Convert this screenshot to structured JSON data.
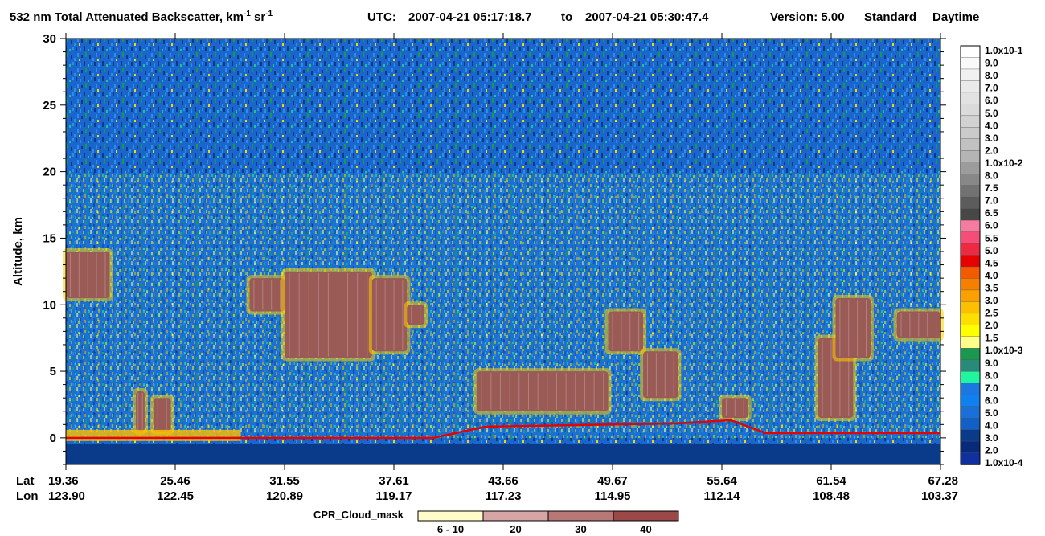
{
  "header": {
    "title_main": "532 nm Total Attenuated Backscatter, km",
    "title_sup1": "-1",
    "title_unit2": " sr",
    "title_sup2": "-1",
    "utc_label": "UTC:",
    "utc_start": "2007-04-21 05:17:18.7",
    "utc_to": "to",
    "utc_end": "2007-04-21 05:30:47.4",
    "version_label": "Version: 5.00",
    "mode": "Standard",
    "daynight": "Daytime"
  },
  "chart_data": {
    "type": "heatmap",
    "ylabel": "Altitude, km",
    "ylim": [
      -2,
      30
    ],
    "y_ticks": [
      0,
      5,
      10,
      15,
      20,
      25,
      30
    ],
    "x_row_labels": [
      "Lat",
      "Lon"
    ],
    "x_ticks": [
      {
        "lat": "19.36",
        "lon": "123.90"
      },
      {
        "lat": "25.46",
        "lon": "122.45"
      },
      {
        "lat": "31.55",
        "lon": "120.89"
      },
      {
        "lat": "37.61",
        "lon": "119.17"
      },
      {
        "lat": "43.66",
        "lon": "117.23"
      },
      {
        "lat": "49.67",
        "lon": "114.95"
      },
      {
        "lat": "55.64",
        "lon": "112.14"
      },
      {
        "lat": "61.54",
        "lon": "108.48"
      },
      {
        "lat": "67.28",
        "lon": "103.37"
      }
    ],
    "colorbar": {
      "labels_top_to_bottom": [
        "1.0x10-1",
        "9.0",
        "8.0",
        "7.0",
        "6.0",
        "5.0",
        "4.0",
        "3.0",
        "2.0",
        "1.0x10-2",
        "8.0",
        "7.5",
        "7.0",
        "6.5",
        "6.0",
        "5.5",
        "5.0",
        "4.5",
        "4.0",
        "3.5",
        "3.0",
        "2.5",
        "2.0",
        "1.5",
        "1.0x10-3",
        "9.0",
        "8.0",
        "7.0",
        "6.0",
        "5.0",
        "4.0",
        "3.0",
        "2.0",
        "1.0x10-4"
      ],
      "colors_top_to_bottom": [
        "#ffffff",
        "#f9f9f9",
        "#f1f1f1",
        "#eaeaea",
        "#e2e2e2",
        "#dadada",
        "#d2d2d2",
        "#cacaca",
        "#c1c1c1",
        "#b4b4b4",
        "#9c9c9c",
        "#888888",
        "#727272",
        "#5c5c5c",
        "#474747",
        "#f77aa0",
        "#f54d77",
        "#ee2a43",
        "#e60000",
        "#f45a00",
        "#f77f00",
        "#fba000",
        "#fdc000",
        "#fedf00",
        "#ffff00",
        "#ffff8a",
        "#1a9850",
        "#2a8a7a",
        "#22f5a0",
        "#1a78e0",
        "#1080f0",
        "#1a70d8",
        "#1060c8",
        "#0a3a8a",
        "#082a7a",
        "#1030a0"
      ]
    },
    "cloud_mask": {
      "label": "CPR_Cloud_mask",
      "categories": [
        "6 - 10",
        "20",
        "30",
        "40"
      ],
      "colors": [
        "#fffcc9",
        "#d6a6a6",
        "#b87878",
        "#9a4848"
      ]
    },
    "colors": {
      "background_low": "#0a3a8a",
      "noise_mid": "#1a78e0",
      "signal_yellow": "#ffff00",
      "cloud_brown": "#9a5a55",
      "surface_red": "#e60000"
    },
    "cloud_regions": [
      {
        "x0": 0.0,
        "x1": 0.05,
        "y0": 10.5,
        "y1": 14.0
      },
      {
        "x0": 0.08,
        "x1": 0.09,
        "y0": 0.5,
        "y1": 3.5
      },
      {
        "x0": 0.1,
        "x1": 0.12,
        "y0": 0.5,
        "y1": 3.0
      },
      {
        "x0": 0.21,
        "x1": 0.25,
        "y0": 9.5,
        "y1": 12.0
      },
      {
        "x0": 0.25,
        "x1": 0.35,
        "y0": 6.0,
        "y1": 12.5
      },
      {
        "x0": 0.35,
        "x1": 0.39,
        "y0": 6.5,
        "y1": 12.0
      },
      {
        "x0": 0.39,
        "x1": 0.41,
        "y0": 8.5,
        "y1": 10.0
      },
      {
        "x0": 0.47,
        "x1": 0.62,
        "y0": 2.0,
        "y1": 5.0
      },
      {
        "x0": 0.62,
        "x1": 0.66,
        "y0": 6.5,
        "y1": 9.5
      },
      {
        "x0": 0.66,
        "x1": 0.7,
        "y0": 3.0,
        "y1": 6.5
      },
      {
        "x0": 0.75,
        "x1": 0.78,
        "y0": 1.5,
        "y1": 3.0
      },
      {
        "x0": 0.86,
        "x1": 0.9,
        "y0": 1.5,
        "y1": 7.5
      },
      {
        "x0": 0.88,
        "x1": 0.92,
        "y0": 6.0,
        "y1": 10.5
      },
      {
        "x0": 0.95,
        "x1": 1.0,
        "y0": 7.5,
        "y1": 9.5
      }
    ]
  }
}
